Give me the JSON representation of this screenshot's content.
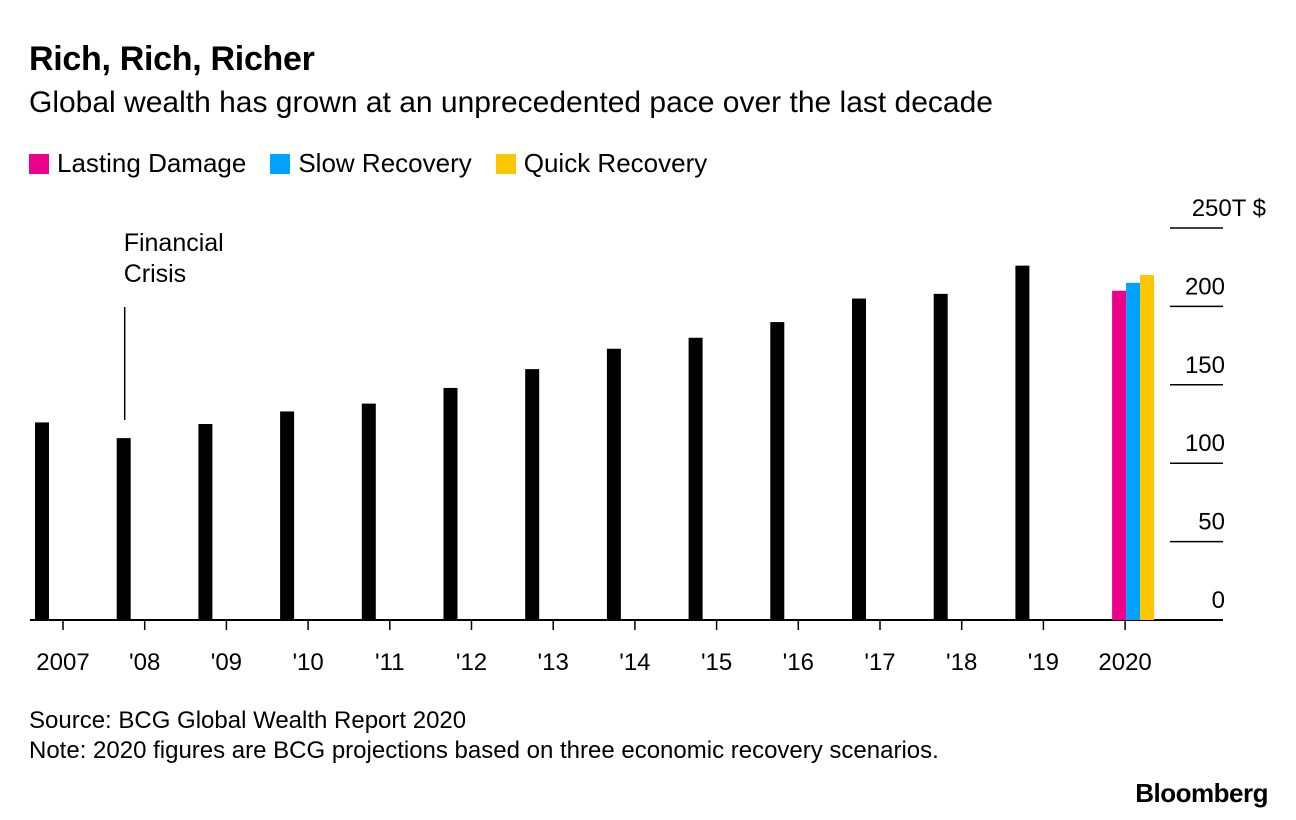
{
  "header": {
    "title": "Rich, Rich, Richer",
    "subtitle": "Global wealth has grown at an unprecedented pace over the last decade"
  },
  "legend": [
    {
      "label": "Lasting Damage",
      "color": "#ec008c"
    },
    {
      "label": "Slow Recovery",
      "color": "#00a2ff"
    },
    {
      "label": "Quick Recovery",
      "color": "#fcc700"
    }
  ],
  "chart_data": {
    "type": "bar",
    "title": "Rich, Rich, Richer",
    "subtitle": "Global wealth has grown at an unprecedented pace over the last decade",
    "xlabel": "",
    "ylabel": "",
    "y_unit_label": "250T $",
    "ylim": [
      0,
      250
    ],
    "yticks": [
      0,
      50,
      100,
      150,
      200,
      250
    ],
    "ytick_labels": [
      "0",
      "50",
      "100",
      "150",
      "200",
      "250T $"
    ],
    "grid": true,
    "legend_position": "top-left",
    "categories": [
      "2007",
      "'08",
      "'09",
      "'10",
      "'11",
      "'12",
      "'13",
      "'14",
      "'15",
      "'16",
      "'17",
      "'18",
      "'19"
    ],
    "values": [
      126,
      116,
      125,
      133,
      138,
      148,
      160,
      173,
      180,
      190,
      205,
      208,
      226
    ],
    "projection": {
      "category": "2020",
      "series": [
        {
          "name": "Lasting Damage",
          "value": 210,
          "color": "#ec008c"
        },
        {
          "name": "Slow Recovery",
          "value": 215,
          "color": "#00a2ff"
        },
        {
          "name": "Quick Recovery",
          "value": 220,
          "color": "#fcc700"
        }
      ]
    },
    "annotations": [
      {
        "text_lines": [
          "Financial",
          "Crisis"
        ],
        "category": "'08"
      }
    ]
  },
  "footer": {
    "source": "Source: BCG Global Wealth Report 2020",
    "note": "Note: 2020 figures are BCG projections based on three economic recovery scenarios.",
    "brand": "Bloomberg"
  }
}
